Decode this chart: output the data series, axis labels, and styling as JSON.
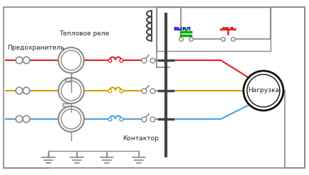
{
  "bg_color": "#ffffff",
  "red": "#e02020",
  "yellow": "#d4a000",
  "blue": "#4aa0e0",
  "gray": "#888888",
  "darkgray": "#444444",
  "green": "#00aa00",
  "black": "#111111",
  "text_main": "#222222",
  "text_blue": "#0000bb",
  "text_red": "#cc0000",
  "label_teplovoe": "Тепловое реле",
  "label_predohranitel": "Предохранитель",
  "label_kontaktor": "Контактор",
  "label_nagruzka": "Нагрузка",
  "label_vykl": "выкл",
  "label_vkl": "вкл",
  "fig_w": 4.34,
  "fig_h": 2.47,
  "dpi": 100
}
